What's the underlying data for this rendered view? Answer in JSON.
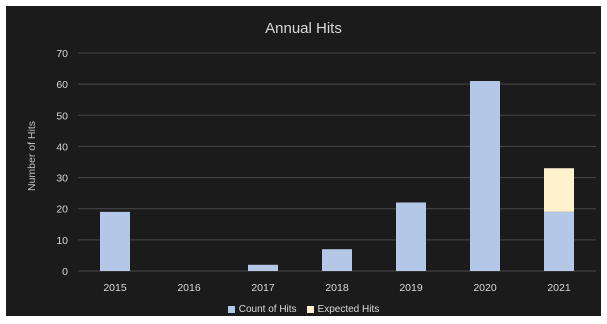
{
  "chart_data": {
    "type": "bar",
    "stacked": true,
    "title": "Annual Hits",
    "xlabel": "",
    "ylabel": "Number of Hits",
    "categories": [
      "2015",
      "2016",
      "2017",
      "2018",
      "2019",
      "2020",
      "2021"
    ],
    "series": [
      {
        "name": "Count of Hits",
        "values": [
          19,
          0,
          2,
          7,
          22,
          61,
          19
        ],
        "color": "#b4c7e7"
      },
      {
        "name": "Expected Hits",
        "values": [
          0,
          0,
          0,
          0,
          0,
          0,
          14
        ],
        "color": "#fff2cc"
      }
    ],
    "ylim": [
      0,
      70
    ],
    "yticks": [
      0,
      10,
      20,
      30,
      40,
      50,
      60,
      70
    ],
    "grid": true,
    "legend_position": "bottom",
    "background": "#1b1b1b"
  }
}
